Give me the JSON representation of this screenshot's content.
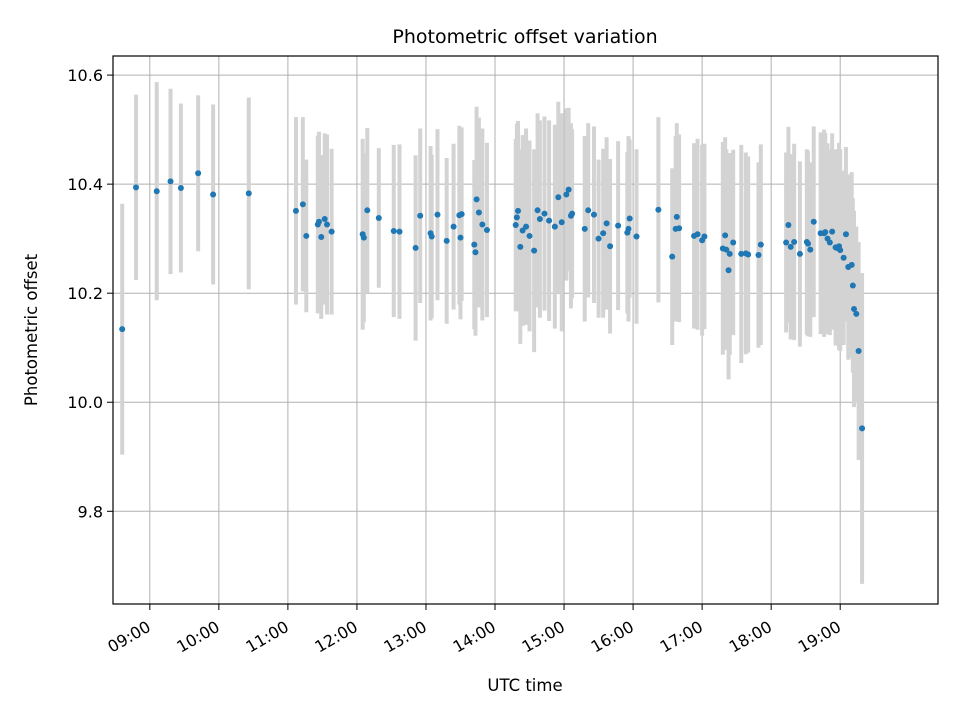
{
  "chart_data": {
    "type": "scatter",
    "title": "Photometric offset variation",
    "xlabel": "UTC time",
    "ylabel": "Photometric offset",
    "x_ticks": [
      "09:00",
      "10:00",
      "11:00",
      "12:00",
      "13:00",
      "14:00",
      "15:00",
      "16:00",
      "17:00",
      "18:00",
      "19:00"
    ],
    "y_ticks": [
      "9.8",
      "10.0",
      "10.2",
      "10.4",
      "10.6"
    ],
    "xlim": [
      "08:28",
      "20:25"
    ],
    "ylim": [
      9.63,
      10.635
    ],
    "grid": true,
    "marker_color": "#1f77b4",
    "errorbar_color": "#d3d3d3",
    "series": [
      {
        "time": [
          "08:36",
          "08:48",
          "09:06",
          "09:18",
          "09:27",
          "09:42",
          "09:55",
          "10:26",
          "11:07",
          "11:13",
          "11:16",
          "11:26",
          "11:27",
          "11:29",
          "11:32",
          "11:34",
          "11:38",
          "12:05",
          "12:06",
          "12:09",
          "12:19",
          "12:32",
          "12:37",
          "12:51",
          "12:55",
          "13:04",
          "13:05",
          "13:10",
          "13:18",
          "13:24",
          "13:29",
          "13:30",
          "13:31",
          "13:42",
          "13:43",
          "13:44",
          "13:46",
          "13:49",
          "13:53",
          "14:18",
          "14:19",
          "14:20",
          "14:22",
          "14:24",
          "14:27",
          "14:30",
          "14:34",
          "14:37",
          "14:39",
          "14:43",
          "14:47",
          "14:52",
          "14:55",
          "14:58",
          "15:02",
          "15:04",
          "15:06",
          "15:07",
          "15:18",
          "15:21",
          "15:26",
          "15:30",
          "15:34",
          "15:37",
          "15:40",
          "15:47",
          "15:55",
          "15:56",
          "15:57",
          "16:03",
          "16:22",
          "16:34",
          "16:37",
          "16:38",
          "16:40",
          "16:53",
          "16:56",
          "17:00",
          "17:02",
          "17:18",
          "17:20",
          "17:21",
          "17:23",
          "17:24",
          "17:27",
          "17:34",
          "17:38",
          "17:40",
          "17:49",
          "17:51",
          "18:13",
          "18:15",
          "18:17",
          "18:20",
          "18:25",
          "18:31",
          "18:32",
          "18:34",
          "18:37",
          "18:43",
          "18:46",
          "18:47",
          "18:49",
          "18:51",
          "18:53",
          "18:56",
          "18:57",
          "18:59",
          "19:00",
          "19:03",
          "19:05",
          "19:07",
          "19:10",
          "19:11",
          "19:12",
          "19:14",
          "19:16",
          "19:19"
        ],
        "y": [
          10.134,
          10.394,
          10.387,
          10.405,
          10.393,
          10.42,
          10.381,
          10.383,
          10.351,
          10.363,
          10.305,
          10.326,
          10.331,
          10.303,
          10.336,
          10.326,
          10.313,
          10.308,
          10.302,
          10.352,
          10.338,
          10.314,
          10.313,
          10.283,
          10.342,
          10.31,
          10.304,
          10.344,
          10.296,
          10.322,
          10.343,
          10.302,
          10.345,
          10.289,
          10.275,
          10.372,
          10.348,
          10.326,
          10.316,
          10.325,
          10.339,
          10.351,
          10.285,
          10.315,
          10.322,
          10.305,
          10.278,
          10.352,
          10.336,
          10.346,
          10.333,
          10.322,
          10.376,
          10.33,
          10.381,
          10.39,
          10.342,
          10.346,
          10.318,
          10.352,
          10.344,
          10.3,
          10.31,
          10.328,
          10.286,
          10.324,
          10.311,
          10.318,
          10.337,
          10.304,
          10.353,
          10.267,
          10.318,
          10.34,
          10.319,
          10.305,
          10.308,
          10.297,
          10.304,
          10.282,
          10.306,
          10.28,
          10.242,
          10.272,
          10.293,
          10.272,
          10.273,
          10.271,
          10.27,
          10.289,
          10.293,
          10.325,
          10.285,
          10.294,
          10.272,
          10.294,
          10.291,
          10.28,
          10.331,
          10.31,
          10.31,
          10.312,
          10.3,
          10.293,
          10.313,
          10.284,
          10.283,
          10.286,
          10.279,
          10.265,
          10.308,
          10.248,
          10.252,
          10.214,
          10.171,
          10.162,
          10.094,
          9.952
        ],
        "yerr": [
          0.23,
          0.17,
          0.2,
          0.17,
          0.155,
          0.143,
          0.165,
          0.176,
          0.172,
          0.16,
          0.14,
          0.163,
          0.165,
          0.15,
          0.157,
          0.165,
          0.152,
          0.175,
          0.155,
          0.151,
          0.128,
          0.158,
          0.16,
          0.17,
          0.16,
          0.16,
          0.15,
          0.157,
          0.152,
          0.152,
          0.164,
          0.15,
          0.159,
          0.155,
          0.153,
          0.17,
          0.174,
          0.176,
          0.16,
          0.158,
          0.172,
          0.165,
          0.178,
          0.175,
          0.18,
          0.175,
          0.186,
          0.178,
          0.181,
          0.178,
          0.184,
          0.187,
          0.175,
          0.2,
          0.158,
          0.15,
          0.17,
          0.155,
          0.17,
          0.16,
          0.162,
          0.145,
          0.155,
          0.158,
          0.16,
          0.155,
          0.148,
          0.17,
          0.145,
          0.16,
          0.17,
          0.162,
          0.17,
          0.172,
          0.172,
          0.17,
          0.175,
          0.175,
          0.17,
          0.195,
          0.18,
          0.184,
          0.2,
          0.185,
          0.17,
          0.2,
          0.185,
          0.18,
          0.17,
          0.184,
          0.165,
          0.18,
          0.17,
          0.18,
          0.17,
          0.17,
          0.17,
          0.16,
          0.175,
          0.185,
          0.19,
          0.182,
          0.175,
          0.17,
          0.18,
          0.18,
          0.165,
          0.19,
          0.185,
          0.16,
          0.16,
          0.17,
          0.17,
          0.16,
          0.18,
          0.16,
          0.2,
          0.285
        ]
      }
    ]
  }
}
